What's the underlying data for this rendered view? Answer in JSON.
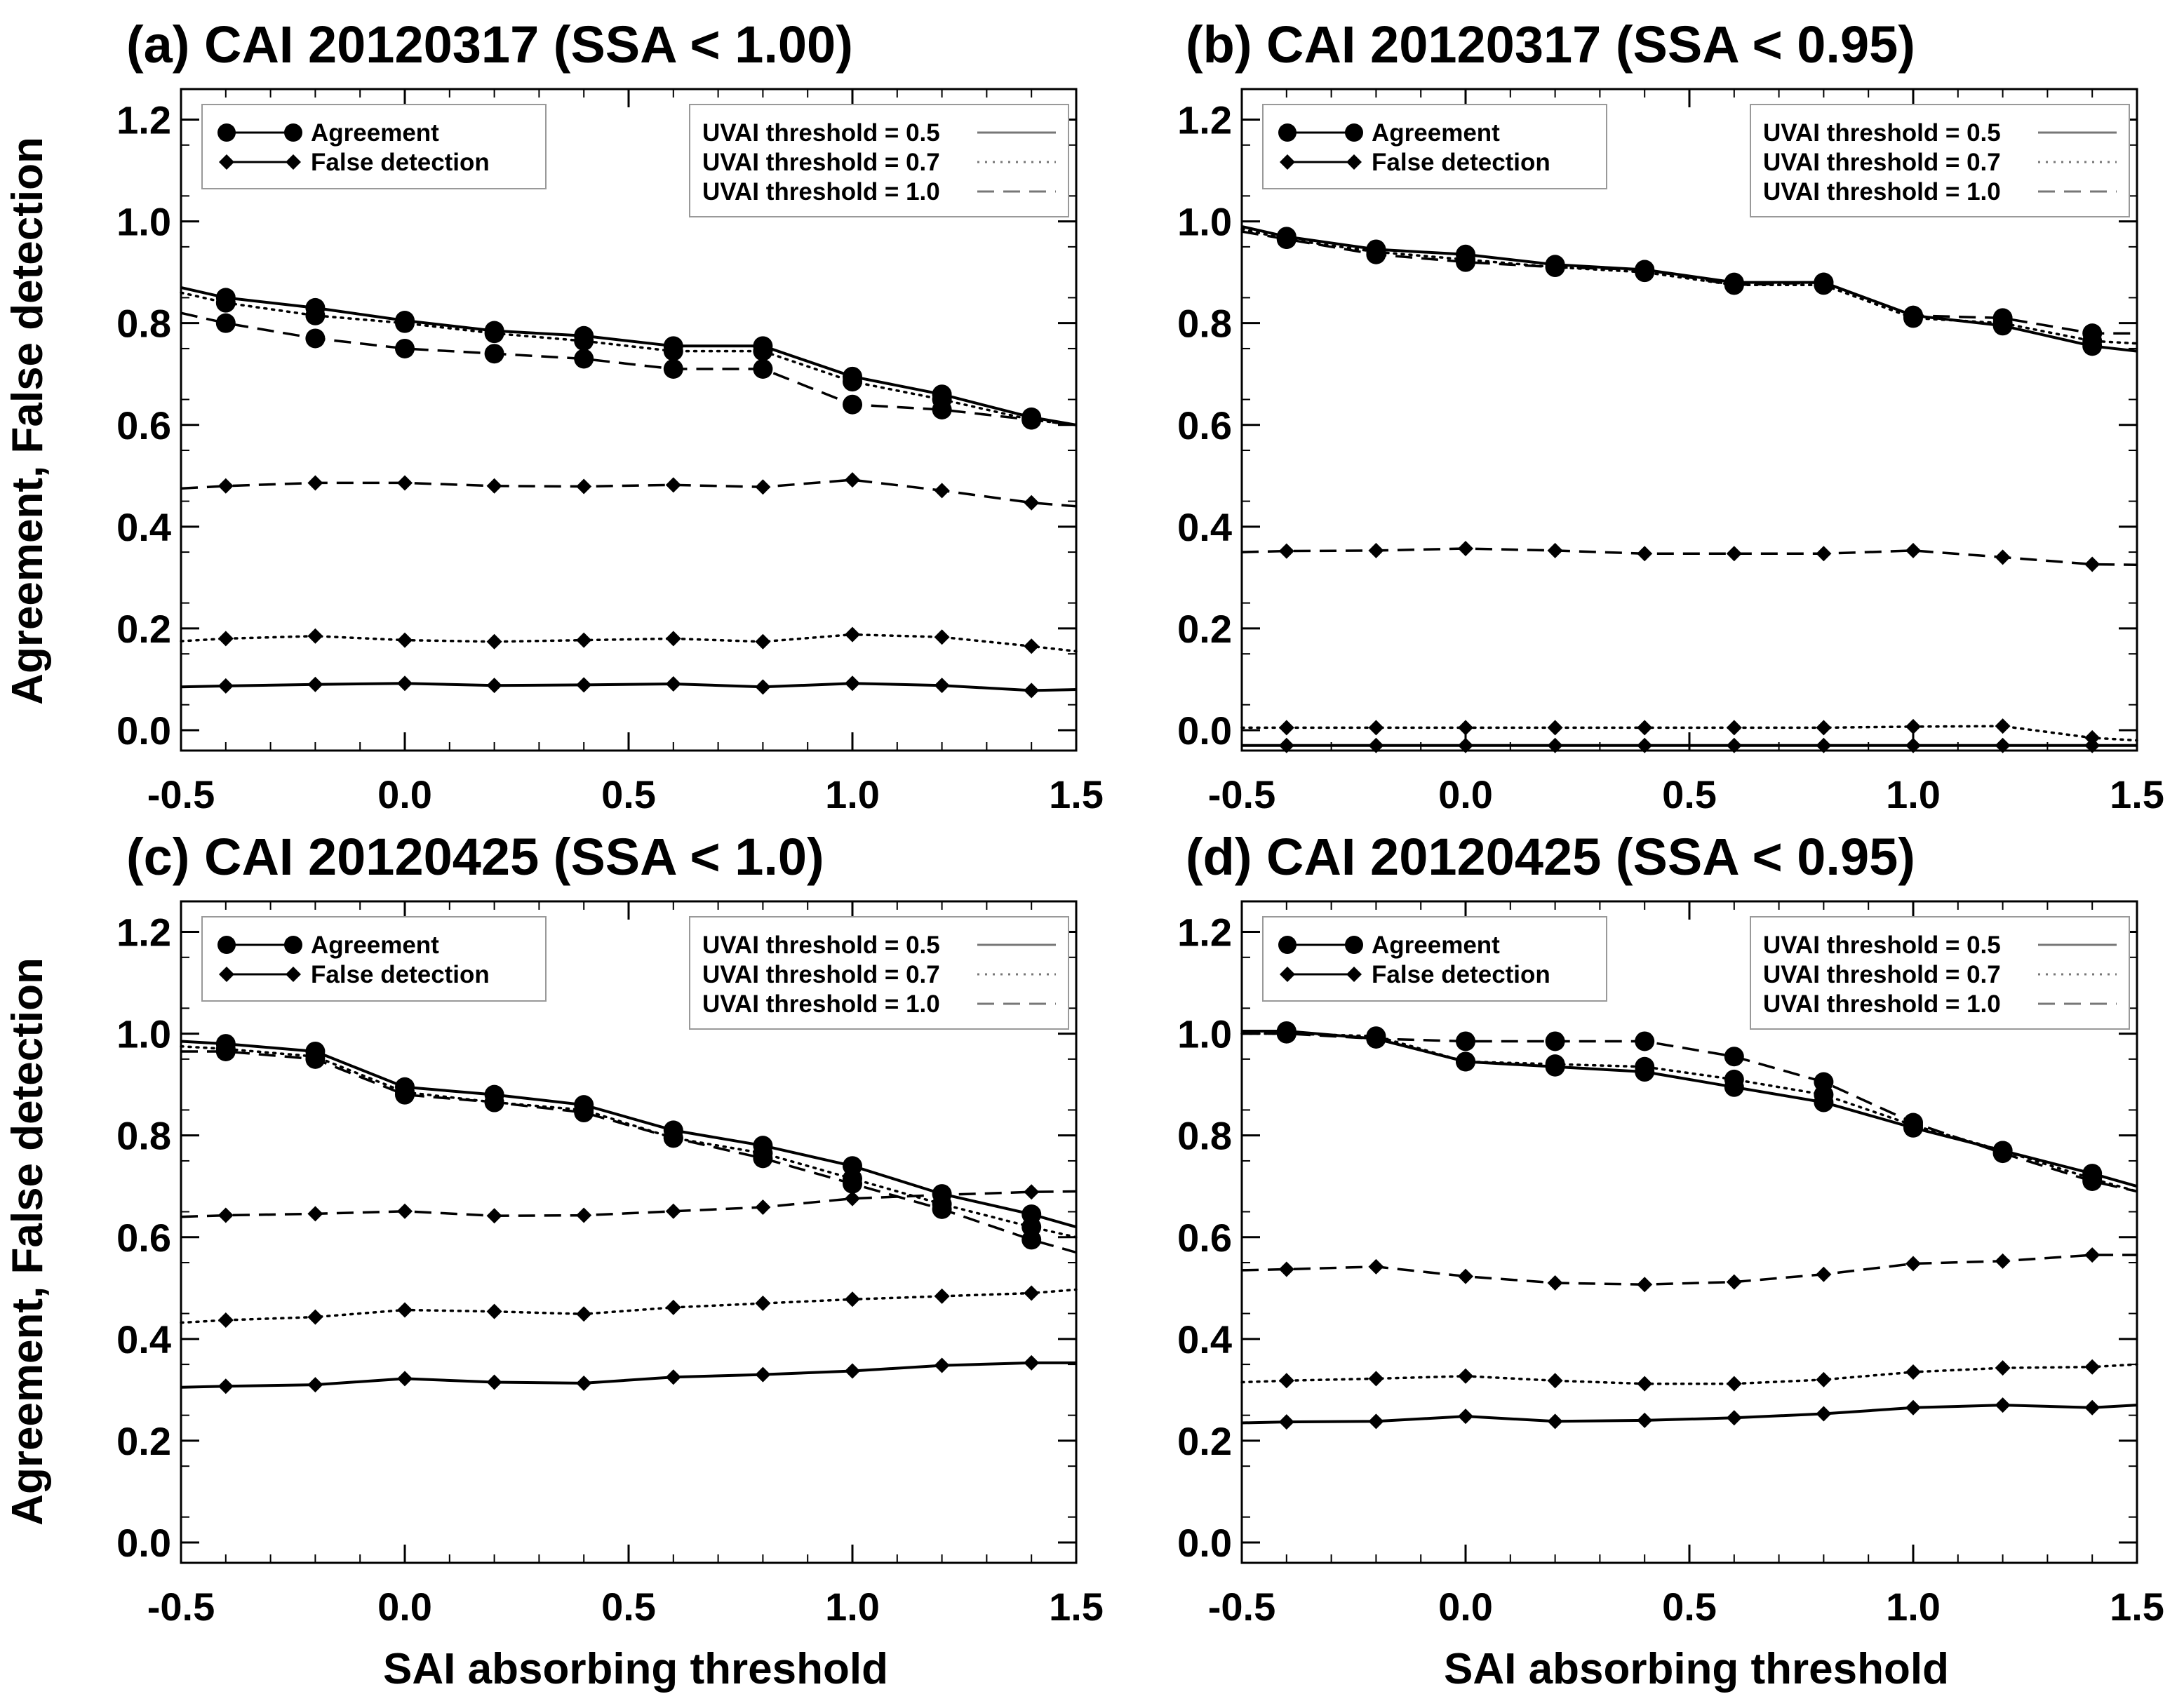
{
  "figure": {
    "ylabel": "Agreement, False detection",
    "xlabel": "SAI absorbing threshold"
  },
  "legend": {
    "markers": [
      {
        "label": "Agreement",
        "marker": "circle"
      },
      {
        "label": "False detection",
        "marker": "diamond"
      }
    ],
    "lines": [
      {
        "label": "UVAI threshold = 0.5",
        "style": "solid"
      },
      {
        "label": "UVAI threshold = 0.7",
        "style": "dotted"
      },
      {
        "label": "UVAI threshold = 1.0",
        "style": "dashed"
      }
    ]
  },
  "chart_data": [
    {
      "type": "line",
      "panel": "(a)",
      "title": "(a) CAI 20120317  (SSA < 1.00)",
      "xlabel": "",
      "ylabel": "Agreement, False detection",
      "xlim": [
        -0.5,
        1.5
      ],
      "ylim": [
        -0.04,
        1.26
      ],
      "xticks": [
        "-0.5",
        "0.0",
        "0.5",
        "1.0",
        "1.5"
      ],
      "yticks": [
        "0.0",
        "0.2",
        "0.4",
        "0.6",
        "0.8",
        "1.0",
        "1.2"
      ],
      "x": [
        -0.4,
        -0.2,
        0.0,
        0.2,
        0.4,
        0.6,
        0.8,
        1.0,
        1.2,
        1.4
      ],
      "xstart": -0.5,
      "xend": 1.5,
      "series": [
        {
          "name": "Agreement, UVAI threshold = 0.5",
          "metric": "agreement",
          "style": "solid",
          "start": 0.87,
          "end": 0.6,
          "values": [
            0.85,
            0.83,
            0.805,
            0.785,
            0.775,
            0.755,
            0.755,
            0.695,
            0.66,
            0.615
          ]
        },
        {
          "name": "Agreement, UVAI threshold = 0.7",
          "metric": "agreement",
          "style": "dotted",
          "start": 0.86,
          "end": 0.6,
          "values": [
            0.84,
            0.815,
            0.8,
            0.78,
            0.765,
            0.745,
            0.745,
            0.685,
            0.65,
            0.61
          ]
        },
        {
          "name": "Agreement, UVAI threshold = 1.0",
          "metric": "agreement",
          "style": "dashed",
          "start": 0.82,
          "end": 0.6,
          "values": [
            0.8,
            0.77,
            0.75,
            0.74,
            0.73,
            0.71,
            0.71,
            0.64,
            0.63,
            0.61
          ]
        },
        {
          "name": "False detection, UVAI threshold = 0.5",
          "metric": "false_detection",
          "style": "solid",
          "start": 0.085,
          "end": 0.08,
          "values": [
            0.087,
            0.09,
            0.092,
            0.088,
            0.089,
            0.091,
            0.085,
            0.092,
            0.088,
            0.078
          ]
        },
        {
          "name": "False detection, UVAI threshold = 0.7",
          "metric": "false_detection",
          "style": "dotted",
          "start": 0.175,
          "end": 0.155,
          "values": [
            0.18,
            0.185,
            0.177,
            0.174,
            0.177,
            0.18,
            0.174,
            0.188,
            0.183,
            0.165
          ]
        },
        {
          "name": "False detection, UVAI threshold = 1.0",
          "metric": "false_detection",
          "style": "dashed",
          "start": 0.475,
          "end": 0.44,
          "values": [
            0.48,
            0.486,
            0.486,
            0.48,
            0.479,
            0.482,
            0.478,
            0.492,
            0.471,
            0.447
          ]
        }
      ]
    },
    {
      "type": "line",
      "panel": "(b)",
      "title": "(b) CAI 20120317  (SSA < 0.95)",
      "xlabel": "",
      "ylabel": "",
      "xlim": [
        -0.5,
        1.5
      ],
      "ylim": [
        -0.04,
        1.26
      ],
      "xticks": [
        "-0.5",
        "0.0",
        "0.5",
        "1.0",
        "1.5"
      ],
      "yticks": [
        "0.0",
        "0.2",
        "0.4",
        "0.6",
        "0.8",
        "1.0",
        "1.2"
      ],
      "x": [
        -0.4,
        -0.2,
        0.0,
        0.2,
        0.4,
        0.6,
        0.8,
        1.0,
        1.2,
        1.4
      ],
      "xstart": -0.5,
      "xend": 1.5,
      "series": [
        {
          "name": "Agreement, UVAI threshold = 0.5",
          "metric": "agreement",
          "style": "solid",
          "start": 0.99,
          "end": 0.745,
          "values": [
            0.97,
            0.945,
            0.935,
            0.915,
            0.905,
            0.88,
            0.88,
            0.815,
            0.795,
            0.755
          ]
        },
        {
          "name": "Agreement, UVAI threshold = 0.7",
          "metric": "agreement",
          "style": "dotted",
          "start": 0.985,
          "end": 0.76,
          "values": [
            0.965,
            0.94,
            0.925,
            0.91,
            0.9,
            0.875,
            0.875,
            0.81,
            0.8,
            0.765
          ]
        },
        {
          "name": "Agreement, UVAI threshold = 1.0",
          "metric": "agreement",
          "style": "dashed",
          "start": 0.98,
          "end": 0.78,
          "values": [
            0.965,
            0.935,
            0.92,
            0.91,
            0.905,
            0.875,
            0.88,
            0.815,
            0.81,
            0.78
          ]
        },
        {
          "name": "False detection, UVAI threshold = 0.5",
          "metric": "false_detection",
          "style": "solid",
          "start": -0.03,
          "end": -0.03,
          "values": [
            -0.03,
            -0.03,
            -0.03,
            -0.03,
            -0.03,
            -0.03,
            -0.03,
            -0.03,
            -0.03,
            -0.03
          ]
        },
        {
          "name": "False detection, UVAI threshold = 0.7",
          "metric": "false_detection",
          "style": "dotted",
          "start": 0.005,
          "end": -0.02,
          "values": [
            0.005,
            0.005,
            0.005,
            0.005,
            0.005,
            0.005,
            0.005,
            0.007,
            0.008,
            -0.015
          ]
        },
        {
          "name": "False detection, UVAI threshold = 1.0",
          "metric": "false_detection",
          "style": "dashed",
          "start": 0.35,
          "end": 0.325,
          "values": [
            0.352,
            0.353,
            0.357,
            0.353,
            0.347,
            0.347,
            0.347,
            0.353,
            0.34,
            0.326
          ]
        }
      ]
    },
    {
      "type": "line",
      "panel": "(c)",
      "title": "(c)  CAI 20120425  (SSA < 1.0)",
      "xlabel": "SAI absorbing threshold",
      "ylabel": "Agreement, False detection",
      "xlim": [
        -0.5,
        1.5
      ],
      "ylim": [
        -0.04,
        1.26
      ],
      "xticks": [
        "-0.5",
        "0.0",
        "0.5",
        "1.0",
        "1.5"
      ],
      "yticks": [
        "0.0",
        "0.2",
        "0.4",
        "0.6",
        "0.8",
        "1.0",
        "1.2"
      ],
      "x": [
        -0.4,
        -0.2,
        0.0,
        0.2,
        0.4,
        0.6,
        0.8,
        1.0,
        1.2,
        1.4
      ],
      "xstart": -0.5,
      "xend": 1.5,
      "series": [
        {
          "name": "Agreement, UVAI threshold = 0.5",
          "metric": "agreement",
          "style": "solid",
          "start": 0.985,
          "end": 0.62,
          "values": [
            0.98,
            0.965,
            0.895,
            0.88,
            0.86,
            0.81,
            0.78,
            0.74,
            0.685,
            0.645
          ]
        },
        {
          "name": "Agreement, UVAI threshold = 0.7",
          "metric": "agreement",
          "style": "dotted",
          "start": 0.975,
          "end": 0.6,
          "values": [
            0.97,
            0.955,
            0.885,
            0.865,
            0.85,
            0.795,
            0.765,
            0.715,
            0.665,
            0.62
          ]
        },
        {
          "name": "Agreement, UVAI threshold = 1.0",
          "metric": "agreement",
          "style": "dashed",
          "start": 0.965,
          "end": 0.57,
          "values": [
            0.965,
            0.95,
            0.88,
            0.865,
            0.845,
            0.795,
            0.755,
            0.705,
            0.655,
            0.595
          ]
        },
        {
          "name": "False detection, UVAI threshold = 0.5",
          "metric": "false_detection",
          "style": "solid",
          "start": 0.305,
          "end": 0.353,
          "values": [
            0.307,
            0.31,
            0.322,
            0.315,
            0.313,
            0.325,
            0.33,
            0.337,
            0.348,
            0.353
          ]
        },
        {
          "name": "False detection, UVAI threshold = 0.7",
          "metric": "false_detection",
          "style": "dotted",
          "start": 0.432,
          "end": 0.497,
          "values": [
            0.437,
            0.443,
            0.457,
            0.454,
            0.449,
            0.462,
            0.47,
            0.478,
            0.484,
            0.49
          ]
        },
        {
          "name": "False detection, UVAI threshold = 1.0",
          "metric": "false_detection",
          "style": "dashed",
          "start": 0.64,
          "end": 0.69,
          "values": [
            0.643,
            0.646,
            0.651,
            0.642,
            0.643,
            0.651,
            0.659,
            0.676,
            0.683,
            0.689
          ]
        }
      ]
    },
    {
      "type": "line",
      "panel": "(d)",
      "title": "(d) CAI 20120425  (SSA < 0.95)",
      "xlabel": "SAI absorbing threshold",
      "ylabel": "",
      "xlim": [
        -0.5,
        1.5
      ],
      "ylim": [
        -0.04,
        1.26
      ],
      "xticks": [
        "-0.5",
        "0.0",
        "0.5",
        "1.0",
        "1.5"
      ],
      "yticks": [
        "0.0",
        "0.2",
        "0.4",
        "0.6",
        "0.8",
        "1.0",
        "1.2"
      ],
      "x": [
        -0.4,
        -0.2,
        0.0,
        0.2,
        0.4,
        0.6,
        0.8,
        1.0,
        1.2,
        1.4
      ],
      "xstart": -0.5,
      "xend": 1.5,
      "series": [
        {
          "name": "Agreement, UVAI threshold = 0.5",
          "metric": "agreement",
          "style": "solid",
          "start": 1.005,
          "end": 0.7,
          "values": [
            1.005,
            0.99,
            0.945,
            0.935,
            0.925,
            0.895,
            0.865,
            0.815,
            0.77,
            0.725
          ]
        },
        {
          "name": "Agreement, UVAI threshold = 0.7",
          "metric": "agreement",
          "style": "dotted",
          "start": 1.0,
          "end": 0.69,
          "values": [
            1.0,
            0.995,
            0.945,
            0.94,
            0.935,
            0.91,
            0.88,
            0.82,
            0.77,
            0.715
          ]
        },
        {
          "name": "Agreement, UVAI threshold = 1.0",
          "metric": "agreement",
          "style": "dashed",
          "start": 1.0,
          "end": 0.69,
          "values": [
            1.0,
            0.99,
            0.985,
            0.985,
            0.985,
            0.955,
            0.905,
            0.825,
            0.765,
            0.71
          ]
        },
        {
          "name": "False detection, UVAI threshold = 0.5",
          "metric": "false_detection",
          "style": "solid",
          "start": 0.235,
          "end": 0.27,
          "values": [
            0.237,
            0.238,
            0.248,
            0.238,
            0.24,
            0.245,
            0.253,
            0.265,
            0.27,
            0.265
          ]
        },
        {
          "name": "False detection, UVAI threshold = 0.7",
          "metric": "false_detection",
          "style": "dotted",
          "start": 0.315,
          "end": 0.35,
          "values": [
            0.318,
            0.322,
            0.327,
            0.318,
            0.312,
            0.312,
            0.32,
            0.335,
            0.343,
            0.345
          ]
        },
        {
          "name": "False detection, UVAI threshold = 1.0",
          "metric": "false_detection",
          "style": "dashed",
          "start": 0.535,
          "end": 0.565,
          "values": [
            0.537,
            0.542,
            0.523,
            0.51,
            0.507,
            0.512,
            0.527,
            0.548,
            0.553,
            0.565
          ]
        }
      ]
    }
  ]
}
